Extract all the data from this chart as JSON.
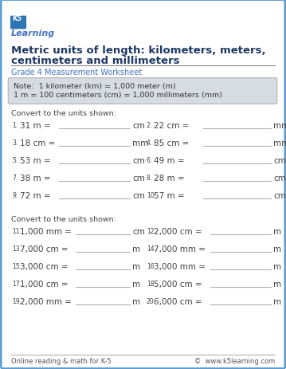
{
  "title_line1": "Metric units of length: kilometers, meters,",
  "title_line2": "centimeters and millimeters",
  "subtitle": "Grade 4 Measurement Worksheet",
  "note_line1": "Note:  1 kilometer (km) = 1,000 meter (m)",
  "note_line2": "1 m = 100 centimeters (cm) = 1,000 millimeters (mm)",
  "convert_label1": "Convert to the units shown:",
  "convert_label2": "Convert to the units shown:",
  "section1": [
    {
      "num": "1.",
      "q": "31 m =",
      "unit": "cm"
    },
    {
      "num": "3.",
      "q": "18 cm =",
      "unit": "mm"
    },
    {
      "num": "5.",
      "q": "53 m =",
      "unit": "cm"
    },
    {
      "num": "7.",
      "q": "38 m =",
      "unit": "cm"
    },
    {
      "num": "9.",
      "q": "72 m =",
      "unit": "cm"
    }
  ],
  "section1b": [
    {
      "num": "2.",
      "q": "22 cm =",
      "unit": "mm"
    },
    {
      "num": "4.",
      "q": "85 cm =",
      "unit": "mm"
    },
    {
      "num": "6.",
      "q": "49 m =",
      "unit": "cm"
    },
    {
      "num": "8.",
      "q": "28 m =",
      "unit": "cm"
    },
    {
      "num": "10.",
      "q": "57 m =",
      "unit": "cm"
    }
  ],
  "section2": [
    {
      "num": "11.",
      "q": "1,000 mm =",
      "unit": "cm"
    },
    {
      "num": "13.",
      "q": "7,000 cm =",
      "unit": "m"
    },
    {
      "num": "15.",
      "q": "3,000 cm =",
      "unit": "m"
    },
    {
      "num": "17.",
      "q": "1,000 cm =",
      "unit": "m"
    },
    {
      "num": "19.",
      "q": "2,000 mm =",
      "unit": "m"
    }
  ],
  "section2b": [
    {
      "num": "12.",
      "q": "2,000 cm =",
      "unit": "m"
    },
    {
      "num": "14.",
      "q": "7,000 mm =",
      "unit": "m"
    },
    {
      "num": "16.",
      "q": "3,000 mm =",
      "unit": "m"
    },
    {
      "num": "18.",
      "q": "5,000 cm =",
      "unit": "m"
    },
    {
      "num": "20.",
      "q": "6,000 cm =",
      "unit": "m"
    }
  ],
  "footer_left": "Online reading & math for K-5",
  "footer_right": "©  www.k5learning.com",
  "bg_color": "#ffffff",
  "border_color": "#5b9bd5",
  "title_color": "#1f3864",
  "subtitle_color": "#4472c4",
  "note_bg": "#d6dce4",
  "note_text_color": "#333333",
  "body_color": "#404040",
  "line_color": "#b0b0b0",
  "footer_color": "#555555"
}
